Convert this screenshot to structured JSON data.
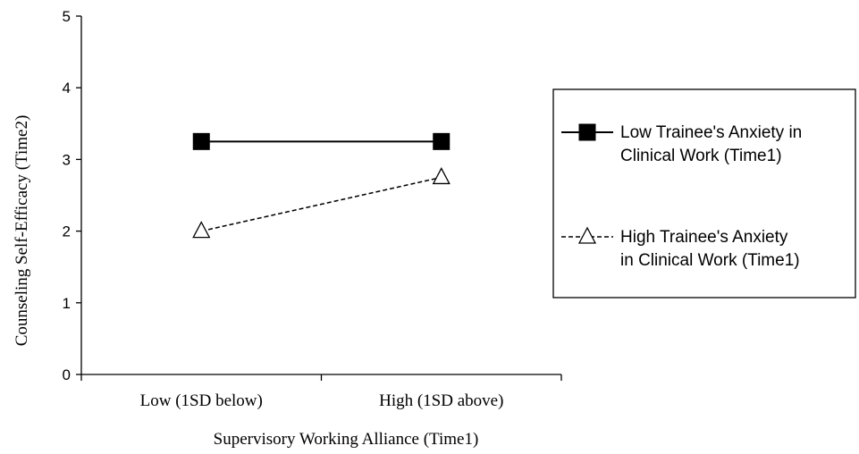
{
  "chart_data": {
    "type": "line",
    "title": "",
    "xlabel": "Supervisory Working Alliance (Time1)",
    "ylabel": "Counseling Self-Efficacy (Time2)",
    "ylim": [
      0,
      5
    ],
    "yticks": [
      "0",
      "1",
      "2",
      "3",
      "4",
      "5"
    ],
    "categories": [
      "Low (1SD below)",
      "High (1SD above)"
    ],
    "grid": false,
    "legend_position": "right",
    "series": [
      {
        "name_lines": [
          "Low Trainee's Anxiety in",
          "Clinical Work (Time1)"
        ],
        "values": [
          3.25,
          3.25
        ],
        "marker": "filled-square",
        "line_style": "solid",
        "color": "#000000"
      },
      {
        "name_lines": [
          "High Trainee's Anxiety",
          "in Clinical Work (Time1)"
        ],
        "values": [
          2.0,
          2.75
        ],
        "marker": "open-triangle",
        "line_style": "dashed",
        "color": "#000000"
      }
    ]
  }
}
